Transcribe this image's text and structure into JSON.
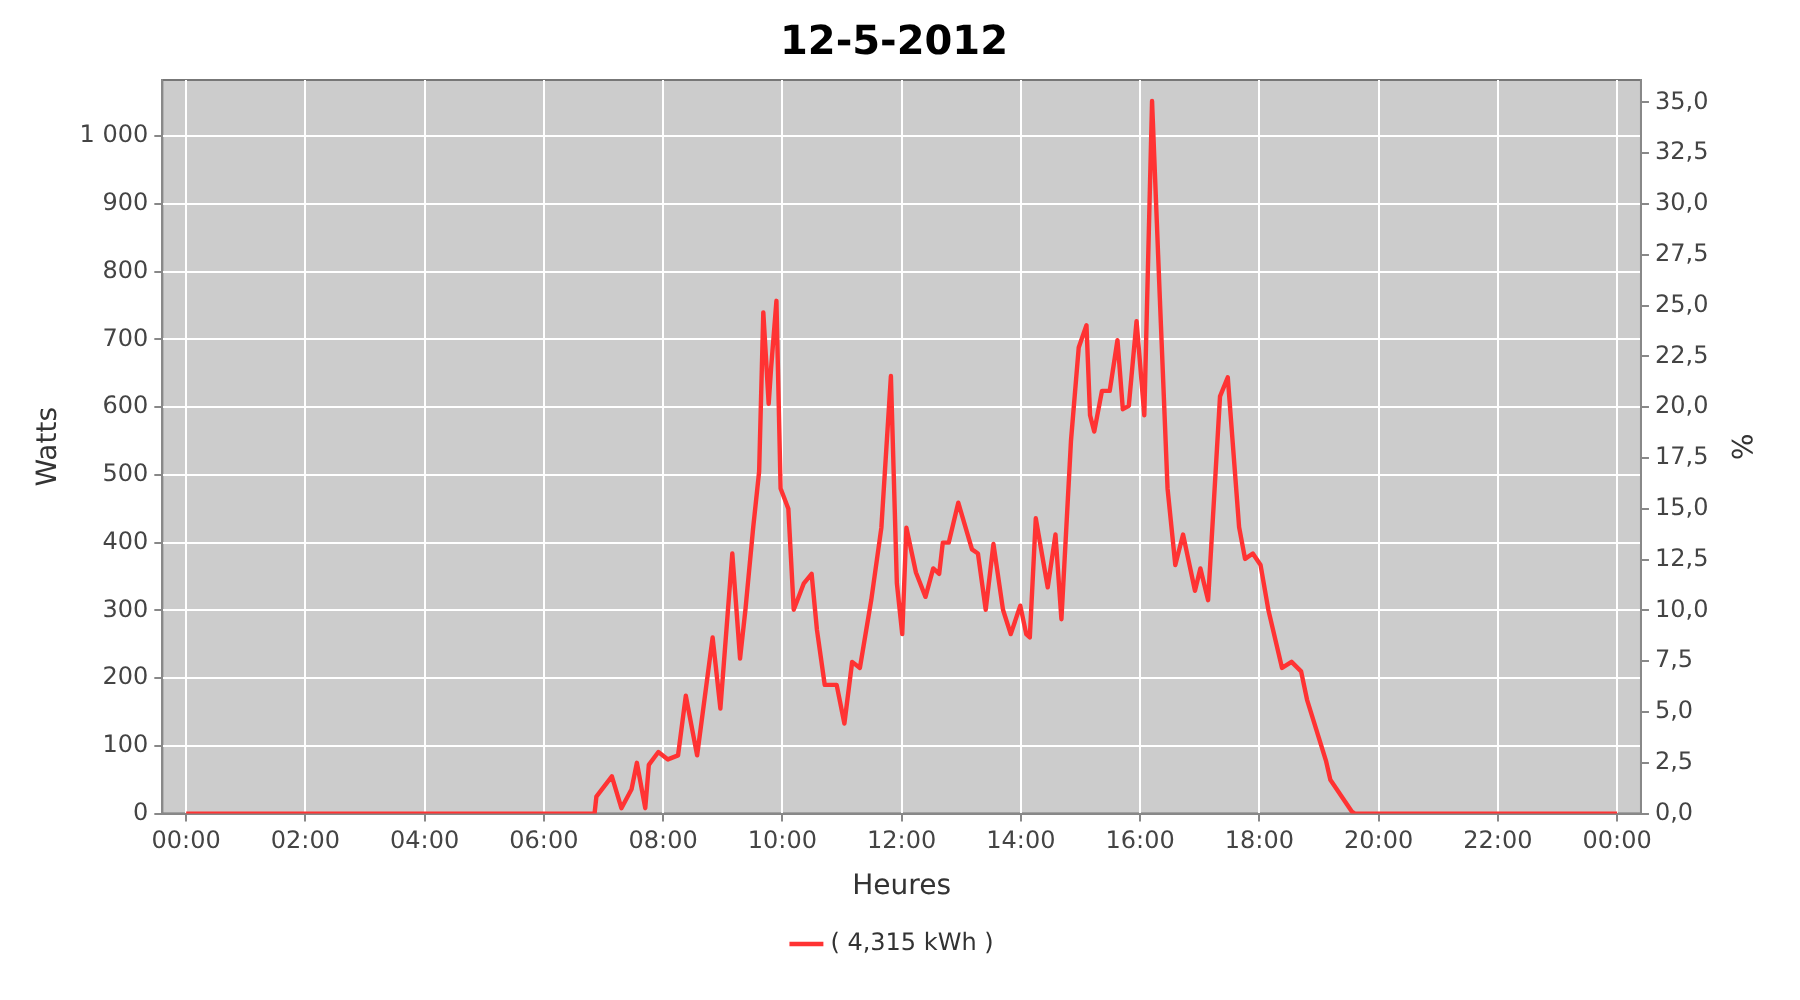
{
  "chart_data": {
    "type": "line",
    "title": "12-5-2012",
    "xlabel": "Heures",
    "ylabel": "Watts",
    "y2label": "%",
    "x": [
      0,
      6.85,
      6.88,
      7.14,
      7.3,
      7.47,
      7.56,
      7.7,
      7.76,
      7.92,
      8.08,
      8.25,
      8.38,
      8.57,
      8.83,
      8.96,
      9.16,
      9.29,
      9.38,
      9.51,
      9.61,
      9.68,
      9.77,
      9.81,
      9.9,
      9.97,
      10.1,
      10.19,
      10.36,
      10.49,
      10.58,
      10.71,
      10.91,
      11.04,
      11.17,
      11.3,
      11.49,
      11.66,
      11.82,
      11.92,
      12.01,
      12.08,
      12.24,
      12.4,
      12.53,
      12.63,
      12.69,
      12.79,
      12.95,
      13.18,
      13.28,
      13.41,
      13.54,
      13.7,
      13.83,
      13.99,
      14.09,
      14.15,
      14.25,
      14.45,
      14.58,
      14.68,
      14.84,
      14.97,
      15.1,
      15.16,
      15.23,
      15.36,
      15.49,
      15.62,
      15.71,
      15.81,
      15.94,
      16.07,
      16.2,
      16.33,
      16.46,
      16.59,
      16.72,
      16.92,
      17.01,
      17.14,
      17.34,
      17.47,
      17.66,
      17.76,
      17.89,
      18.02,
      18.15,
      18.38,
      18.54,
      18.7,
      18.8,
      19.12,
      19.19,
      19.55,
      19.6,
      24
    ],
    "series": [
      {
        "name": "( 4,315 kWh )",
        "color": "#ff3333",
        "values": [
          0,
          0,
          25,
          55,
          8,
          36,
          75,
          8,
          72,
          91,
          80,
          86,
          174,
          86,
          260,
          155,
          384,
          229,
          301,
          422,
          505,
          740,
          605,
          657,
          757,
          480,
          450,
          301,
          340,
          354,
          271,
          190,
          190,
          133,
          224,
          215,
          315,
          422,
          646,
          340,
          265,
          422,
          356,
          320,
          362,
          354,
          400,
          400,
          459,
          390,
          384,
          301,
          398,
          301,
          265,
          307,
          265,
          260,
          436,
          334,
          412,
          287,
          550,
          688,
          721,
          588,
          564,
          624,
          624,
          699,
          597,
          602,
          727,
          588,
          1052,
          762,
          480,
          367,
          412,
          329,
          362,
          315,
          616,
          644,
          423,
          376,
          384,
          367,
          301,
          215,
          224,
          210,
          168,
          77,
          50,
          3,
          0,
          0
        ]
      }
    ],
    "xlim": [
      -0.4,
      24.4
    ],
    "xticks": [
      {
        "value": 0,
        "label": "00:00"
      },
      {
        "value": 2,
        "label": "02:00"
      },
      {
        "value": 4,
        "label": "04:00"
      },
      {
        "value": 6,
        "label": "06:00"
      },
      {
        "value": 8,
        "label": "08:00"
      },
      {
        "value": 10,
        "label": "10:00"
      },
      {
        "value": 12,
        "label": "12:00"
      },
      {
        "value": 14,
        "label": "14:00"
      },
      {
        "value": 16,
        "label": "16:00"
      },
      {
        "value": 18,
        "label": "18:00"
      },
      {
        "value": 20,
        "label": "20:00"
      },
      {
        "value": 22,
        "label": "22:00"
      },
      {
        "value": 24,
        "label": "00:00"
      }
    ],
    "ylim": [
      0,
      1083
    ],
    "yticks": [
      0,
      100,
      200,
      300,
      400,
      500,
      600,
      700,
      800,
      900,
      {
        "value": 1000,
        "label": "1 000"
      }
    ],
    "y2lim": [
      0,
      36.1
    ],
    "y2ticks": [
      {
        "value": 0,
        "label": "0,0"
      },
      {
        "value": 2.5,
        "label": "2,5"
      },
      {
        "value": 5,
        "label": "5,0"
      },
      {
        "value": 7.5,
        "label": "7,5"
      },
      {
        "value": 10,
        "label": "10,0"
      },
      {
        "value": 12.5,
        "label": "12,5"
      },
      {
        "value": 15,
        "label": "15,0"
      },
      {
        "value": 17.5,
        "label": "17,5"
      },
      {
        "value": 20,
        "label": "20,0"
      },
      {
        "value": 22.5,
        "label": "22,5"
      },
      {
        "value": 25,
        "label": "25,0"
      },
      {
        "value": 27.5,
        "label": "27,5"
      },
      {
        "value": 30,
        "label": "30,0"
      },
      {
        "value": 32.5,
        "label": "32,5"
      },
      {
        "value": 35,
        "label": "35,0"
      }
    ],
    "grid": true,
    "legend": "bottom",
    "marker": "none",
    "line_style": "solid"
  }
}
